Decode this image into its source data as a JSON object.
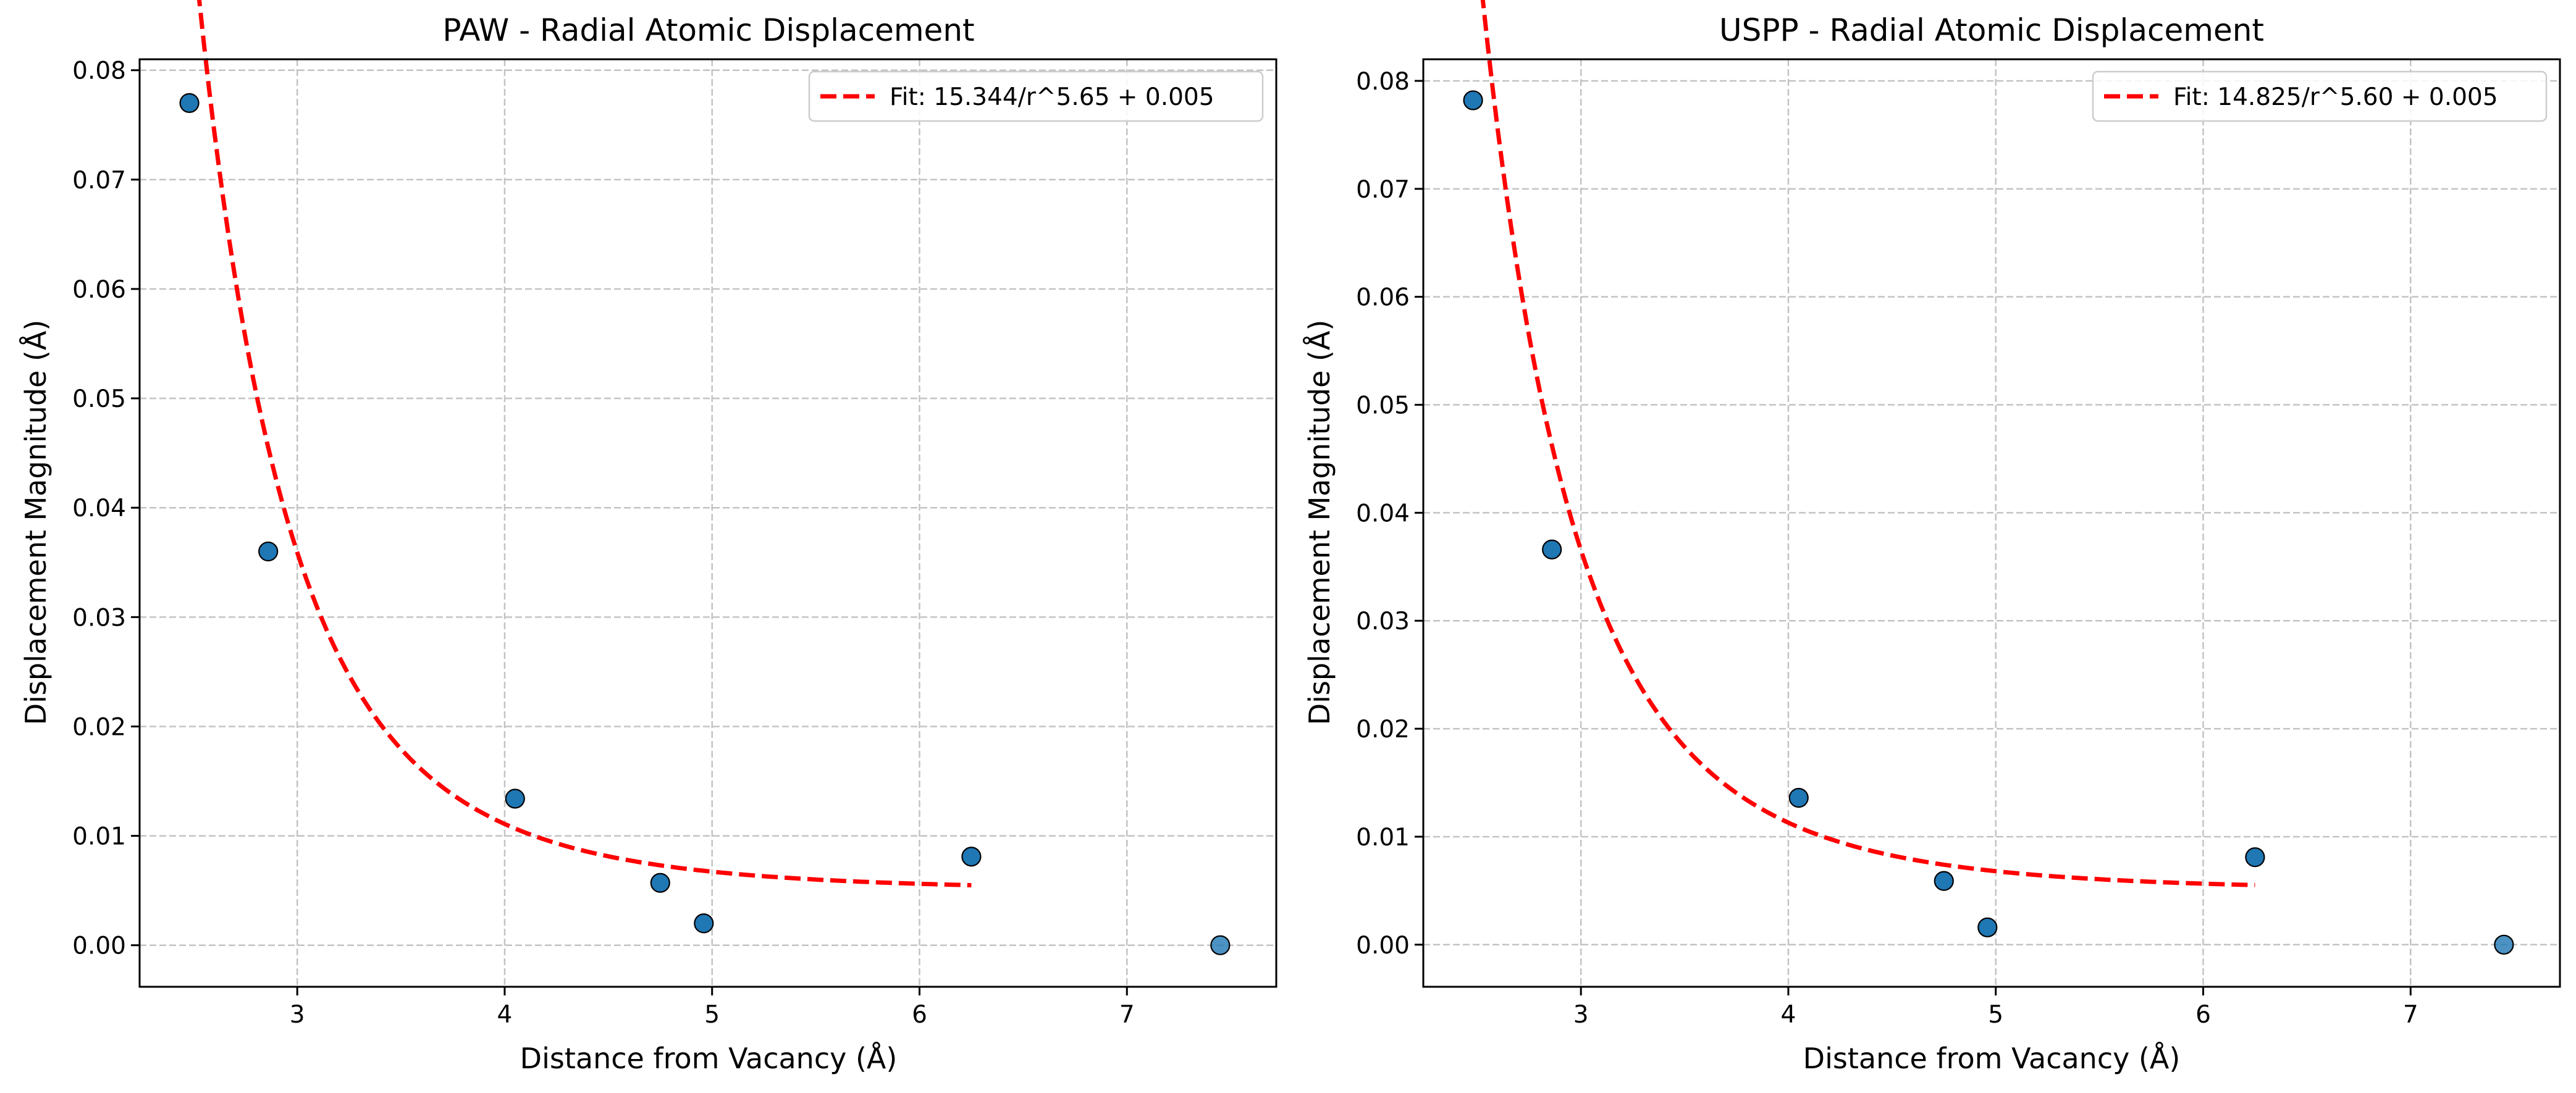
{
  "chart_data": [
    {
      "type": "scatter",
      "title": "PAW - Radial Atomic Displacement",
      "xlabel": "Distance from Vacancy (Å)",
      "ylabel": "Displacement Magnitude (Å)",
      "xlim": [
        2.24,
        7.72
      ],
      "ylim": [
        -0.0038,
        0.081
      ],
      "xticks": [
        3,
        4,
        5,
        6,
        7
      ],
      "xtick_labels": [
        "3",
        "4",
        "5",
        "6",
        "7"
      ],
      "yticks": [
        0,
        0.01,
        0.02,
        0.03,
        0.04,
        0.05,
        0.06,
        0.07,
        0.08
      ],
      "ytick_labels": [
        "0.00",
        "0.01",
        "0.02",
        "0.03",
        "0.04",
        "0.05",
        "0.06",
        "0.07",
        "0.08"
      ],
      "grid": true,
      "legend_position": "top-right",
      "series": [
        {
          "kind": "points",
          "color": "#1f77b4",
          "points": [
            {
              "x": 2.48,
              "y": 0.077
            },
            {
              "x": 2.86,
              "y": 0.036
            },
            {
              "x": 4.05,
              "y": 0.0134
            },
            {
              "x": 4.75,
              "y": 0.0057
            },
            {
              "x": 4.96,
              "y": 0.002
            },
            {
              "x": 6.25,
              "y": 0.0081
            },
            {
              "x": 7.45,
              "y": 0.0,
              "faded": true
            }
          ]
        },
        {
          "kind": "fit-line",
          "name": "Fit: 15.344/r^5.65 + 0.005",
          "color": "#ff0000",
          "dashed": true,
          "fit": {
            "A": 15.344,
            "n": 5.65,
            "c": 0.005
          },
          "x_range": [
            2.48,
            6.25
          ]
        }
      ]
    },
    {
      "type": "scatter",
      "title": "USPP - Radial Atomic Displacement",
      "xlabel": "Distance from Vacancy (Å)",
      "ylabel": "Displacement Magnitude (Å)",
      "xlim": [
        2.24,
        7.72
      ],
      "ylim": [
        -0.0039,
        0.082
      ],
      "xticks": [
        3,
        4,
        5,
        6,
        7
      ],
      "xtick_labels": [
        "3",
        "4",
        "5",
        "6",
        "7"
      ],
      "yticks": [
        0,
        0.01,
        0.02,
        0.03,
        0.04,
        0.05,
        0.06,
        0.07,
        0.08
      ],
      "ytick_labels": [
        "0.00",
        "0.01",
        "0.02",
        "0.03",
        "0.04",
        "0.05",
        "0.06",
        "0.07",
        "0.08"
      ],
      "grid": true,
      "legend_position": "top-right",
      "series": [
        {
          "kind": "points",
          "color": "#1f77b4",
          "points": [
            {
              "x": 2.48,
              "y": 0.0782
            },
            {
              "x": 2.86,
              "y": 0.0366
            },
            {
              "x": 4.05,
              "y": 0.0136
            },
            {
              "x": 4.75,
              "y": 0.0059
            },
            {
              "x": 4.96,
              "y": 0.0016
            },
            {
              "x": 6.25,
              "y": 0.0081
            },
            {
              "x": 7.45,
              "y": 0.0,
              "faded": true
            }
          ]
        },
        {
          "kind": "fit-line",
          "name": "Fit: 14.825/r^5.60 + 0.005",
          "color": "#ff0000",
          "dashed": true,
          "fit": {
            "A": 14.825,
            "n": 5.6,
            "c": 0.005
          },
          "x_range": [
            2.48,
            6.25
          ]
        }
      ]
    }
  ]
}
